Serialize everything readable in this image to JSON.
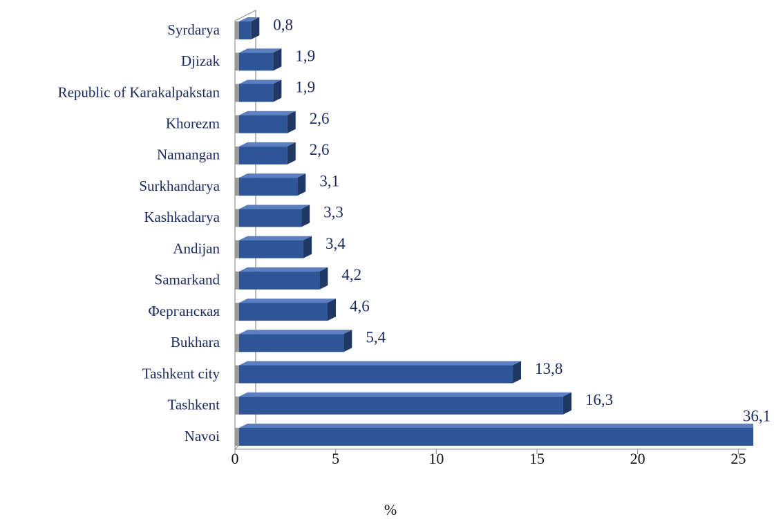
{
  "chart_data": {
    "type": "bar",
    "orientation": "horizontal",
    "x_label": "%",
    "categories": [
      "Syrdarya",
      "Djizak",
      "Republic of Karakalpakstan",
      "Khorezm",
      "Namangan",
      "Surkhandarya",
      "Kashkadarya",
      "Andijan",
      "Samarkand",
      "Ферганская",
      "Bukhara",
      "Tashkent city",
      "Tashkent",
      "Navoi"
    ],
    "values": [
      0.8,
      1.9,
      1.9,
      2.6,
      2.6,
      3.1,
      3.3,
      3.4,
      4.2,
      4.6,
      5.4,
      13.8,
      16.3,
      36.1
    ],
    "value_labels": [
      "0,8",
      "1,9",
      "1,9",
      "2,6",
      "2,6",
      "3,1",
      "3,3",
      "3,4",
      "4,2",
      "4,6",
      "5,4",
      "13,8",
      "16,3",
      "36,1"
    ],
    "color": "#2e5597",
    "xlim": [
      0,
      25.4
    ],
    "xticks": [
      0,
      5,
      10,
      15,
      20,
      25
    ]
  }
}
